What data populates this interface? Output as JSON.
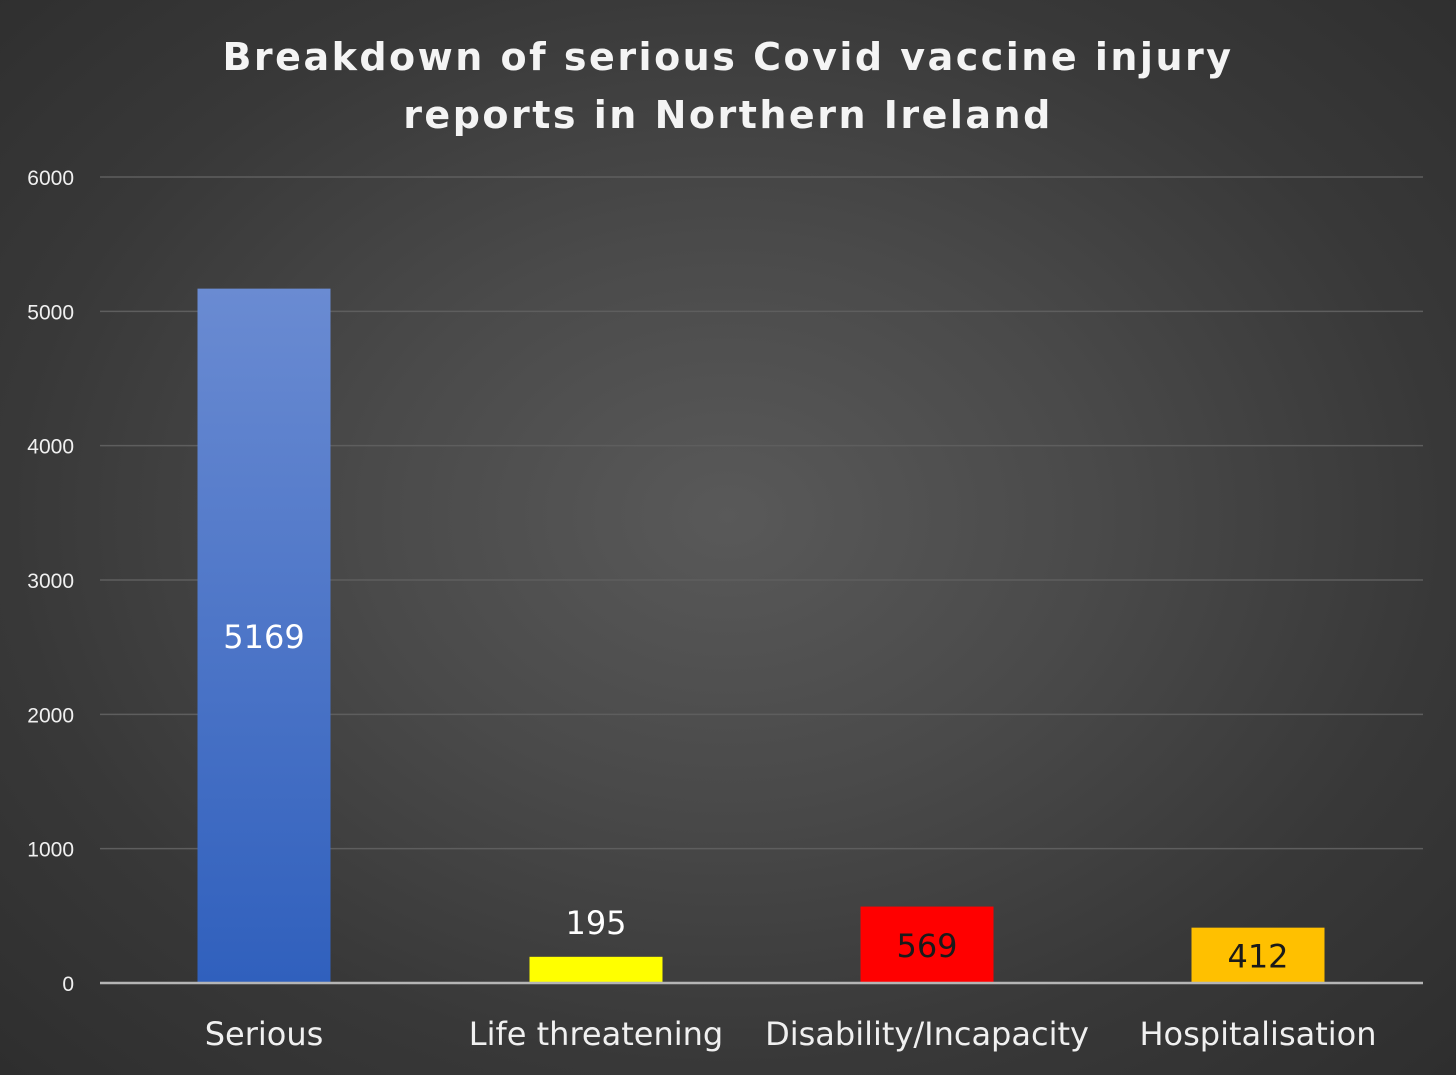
{
  "chart_data": {
    "type": "bar",
    "title": "Breakdown of serious Covid vaccine injury\nreports in Northern Ireland",
    "categories": [
      "Serious",
      "Life threatening",
      "Disability/Incapacity",
      "Hospitalisation"
    ],
    "values": [
      5169,
      195,
      569,
      412
    ],
    "data_labels": [
      "5169",
      "195",
      "569",
      "412"
    ],
    "bar_colors": [
      "#4472c4",
      "#ffff00",
      "#ff0000",
      "#ffc000"
    ],
    "data_label_colors": [
      "#ffffff",
      "#ffffff",
      "#1a1a1a",
      "#1a1a1a"
    ],
    "data_label_position": [
      "center",
      "outside-end",
      "center",
      "center"
    ],
    "ylim": [
      0,
      6000
    ],
    "yticks": [
      0,
      1000,
      2000,
      3000,
      4000,
      5000,
      6000
    ],
    "ytick_labels": [
      "0",
      "1000",
      "2000",
      "3000",
      "4000",
      "5000",
      "6000"
    ],
    "grid": true,
    "legend": false,
    "background": "#3f3f3f"
  }
}
